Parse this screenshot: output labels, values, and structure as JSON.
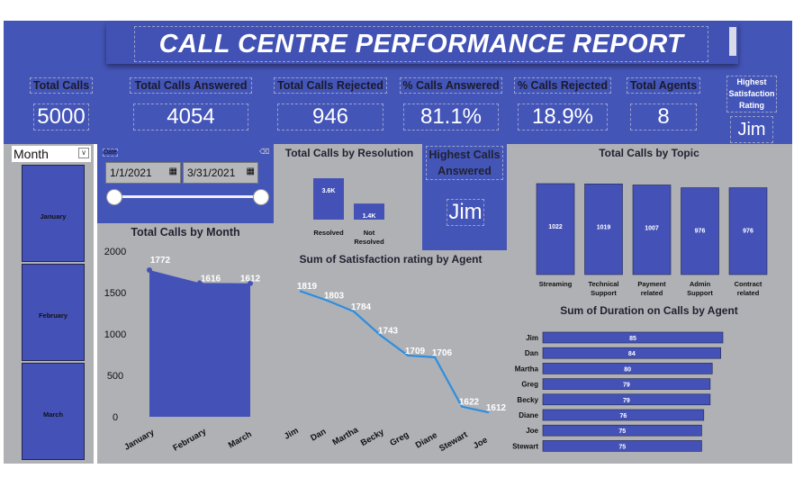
{
  "header": {
    "title": "CALL CENTRE PERFORMANCE REPORT"
  },
  "kpis": [
    {
      "label": "Total Calls",
      "value": "5000"
    },
    {
      "label": "Total Calls Answered",
      "value": "4054"
    },
    {
      "label": "Total Calls Rejected",
      "value": "946"
    },
    {
      "label": "% Calls Answered",
      "value": "81.1%"
    },
    {
      "label": "% Calls Rejected",
      "value": "18.9%"
    },
    {
      "label": "Total Agents",
      "value": "8"
    },
    {
      "label": "Highest Satisfaction Rating",
      "value": "Jim"
    }
  ],
  "month_slicer": {
    "label": "Month",
    "items": [
      "January",
      "February",
      "March"
    ]
  },
  "date_slicer": {
    "label": "Date",
    "start": "1/1/2021",
    "end": "3/31/2021"
  },
  "highest_calls": {
    "label": "Highest Calls Answered",
    "value": "Jim"
  },
  "colors": {
    "primary": "#4455b8",
    "panel": "#b0b1b5",
    "line": "#2e8ee0"
  },
  "chart_data": [
    {
      "type": "bar",
      "title": "Total Calls by Resolution",
      "categories": [
        "Resolved",
        "Not Resolved"
      ],
      "values": [
        3600,
        1400
      ],
      "data_labels": [
        "3.6K",
        "1.4K"
      ]
    },
    {
      "type": "bar",
      "title": "Total Calls by Topic",
      "categories": [
        "Streaming",
        "Technical Support",
        "Payment related",
        "Admin Support",
        "Contract related"
      ],
      "values": [
        1022,
        1019,
        1007,
        976,
        976
      ]
    },
    {
      "type": "area",
      "title": "Total Calls by Month",
      "categories": [
        "January",
        "February",
        "March"
      ],
      "values": [
        1772,
        1616,
        1612
      ],
      "yticks": [
        "2000",
        "1500",
        "1000",
        "500",
        "0"
      ],
      "ylim": [
        0,
        2000
      ]
    },
    {
      "type": "line",
      "title": "Sum of Satisfaction rating by Agent",
      "categories": [
        "Jim",
        "Dan",
        "Martha",
        "Becky",
        "Greg",
        "Diane",
        "Stewart",
        "Joe"
      ],
      "values": [
        1819,
        1803,
        1784,
        1743,
        1709,
        1706,
        1622,
        1612
      ]
    },
    {
      "type": "bar",
      "orientation": "horizontal",
      "title": "Sum of Duration on Calls by Agent",
      "categories": [
        "Jim",
        "Dan",
        "Martha",
        "Greg",
        "Becky",
        "Diane",
        "Joe",
        "Stewart"
      ],
      "values": [
        85,
        84,
        80,
        79,
        79,
        76,
        75,
        75
      ]
    }
  ]
}
